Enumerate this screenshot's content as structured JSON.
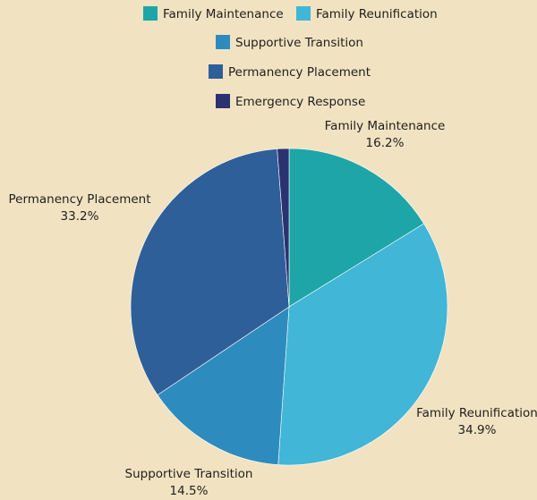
{
  "chart_data": {
    "type": "pie",
    "title": "",
    "categories": [
      "Family Maintenance",
      "Family Reunification",
      "Supportive Transition",
      "Permanency Placement",
      "Emergency Response"
    ],
    "values": [
      16.2,
      34.9,
      14.5,
      33.2,
      1.2
    ],
    "value_labels": [
      "16.2%",
      "34.9%",
      "14.5%",
      "33.2%",
      ""
    ],
    "colors": [
      "#1ea5a8",
      "#41b6d6",
      "#2e8bbd",
      "#2f5f98",
      "#2b3270"
    ],
    "legend_position": "top"
  }
}
